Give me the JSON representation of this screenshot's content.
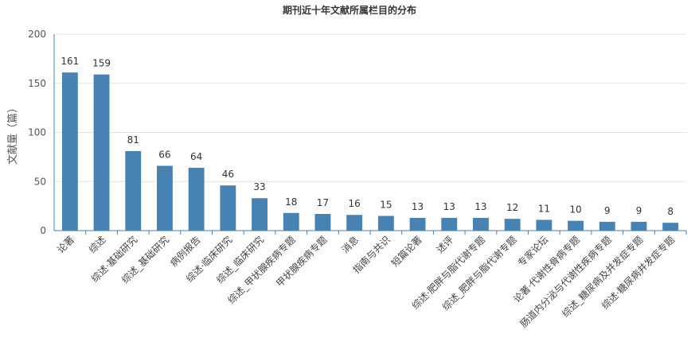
{
  "chart_data": {
    "type": "bar",
    "title": "期刊近十年文献所属栏目的分布",
    "ylabel": "文献量（篇）",
    "xlabel": "",
    "ylim": [
      0,
      200
    ],
    "yticks": [
      0,
      50,
      100,
      150,
      200
    ],
    "grid": true,
    "bar_color": "#4682b4",
    "categories": [
      "论著",
      "综述",
      "综述·基础研究",
      "综述_基础研究",
      "病例报告",
      "综述·临床研究",
      "综述_临床研究",
      "综述_甲状腺疾病专题",
      "甲状腺疾病专题",
      "消息",
      "指南与共识",
      "短篇论著",
      "述评",
      "综述·肥胖与脂代谢专题",
      "综述_肥胖与脂代谢专题",
      "专家论坛",
      "论著·代谢性骨病专题",
      "肠道内分泌与代谢性疾病专题",
      "综述_糖尿病及并发症专题",
      "综述·糖尿病并发症专题"
    ],
    "values": [
      161,
      159,
      81,
      66,
      64,
      46,
      33,
      18,
      17,
      16,
      15,
      13,
      13,
      13,
      12,
      11,
      10,
      9,
      9,
      8
    ]
  }
}
